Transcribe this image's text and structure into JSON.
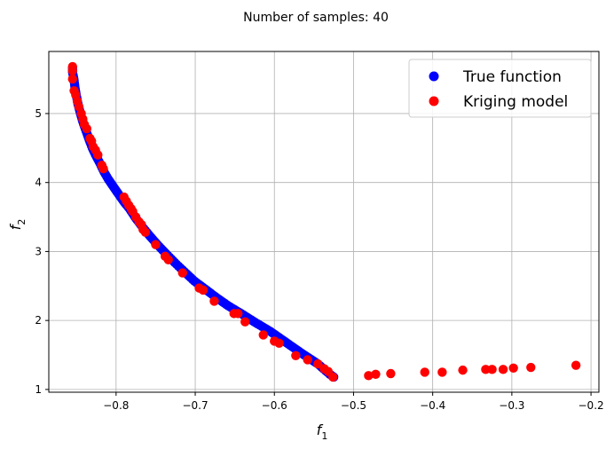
{
  "chart_data": {
    "type": "scatter",
    "title": "Number of samples: 40",
    "xlabel": "f",
    "xlabel_sub": "1",
    "ylabel": "f",
    "ylabel_sub": "2",
    "xlim": [
      -0.885,
      -0.19
    ],
    "ylim": [
      0.96,
      5.9
    ],
    "xticks": [
      -0.8,
      -0.7,
      -0.6,
      -0.5,
      -0.4,
      -0.3,
      -0.2
    ],
    "xtick_labels": [
      "−0.8",
      "−0.7",
      "−0.6",
      "−0.5",
      "−0.4",
      "−0.3",
      "−0.2"
    ],
    "yticks": [
      1,
      2,
      3,
      4,
      5
    ],
    "ytick_labels": [
      "1",
      "2",
      "3",
      "4",
      "5"
    ],
    "grid": true,
    "legend_position": "top-right",
    "series": [
      {
        "name": "True function",
        "color": "#0000ff",
        "curve": true,
        "x_range": [
          -0.855,
          -0.525
        ],
        "points": [
          [
            -0.855,
            5.66
          ],
          [
            -0.855,
            5.6
          ],
          [
            -0.853,
            5.48
          ],
          [
            -0.852,
            5.38
          ],
          [
            -0.85,
            5.25
          ],
          [
            -0.848,
            5.13
          ],
          [
            -0.845,
            5.0
          ],
          [
            -0.842,
            4.88
          ],
          [
            -0.838,
            4.75
          ],
          [
            -0.834,
            4.62
          ],
          [
            -0.83,
            4.5
          ],
          [
            -0.826,
            4.4
          ],
          [
            -0.82,
            4.27
          ],
          [
            -0.815,
            4.15
          ],
          [
            -0.81,
            4.05
          ],
          [
            -0.804,
            3.95
          ],
          [
            -0.798,
            3.85
          ],
          [
            -0.79,
            3.72
          ],
          [
            -0.783,
            3.62
          ],
          [
            -0.775,
            3.48
          ],
          [
            -0.767,
            3.36
          ],
          [
            -0.757,
            3.22
          ],
          [
            -0.747,
            3.09
          ],
          [
            -0.737,
            2.97
          ],
          [
            -0.726,
            2.84
          ],
          [
            -0.714,
            2.71
          ],
          [
            -0.701,
            2.57
          ],
          [
            -0.688,
            2.46
          ],
          [
            -0.673,
            2.33
          ],
          [
            -0.658,
            2.21
          ],
          [
            -0.642,
            2.1
          ],
          [
            -0.624,
            1.97
          ],
          [
            -0.605,
            1.84
          ],
          [
            -0.585,
            1.68
          ],
          [
            -0.565,
            1.52
          ],
          [
            -0.545,
            1.37
          ],
          [
            -0.53,
            1.22
          ],
          [
            -0.525,
            1.18
          ]
        ]
      },
      {
        "name": "Kriging model",
        "color": "#ff0000",
        "points": [
          [
            -0.855,
            5.68
          ],
          [
            -0.855,
            5.62
          ],
          [
            -0.855,
            5.5
          ],
          [
            -0.853,
            5.33
          ],
          [
            -0.851,
            5.27
          ],
          [
            -0.849,
            5.18
          ],
          [
            -0.847,
            5.1
          ],
          [
            -0.844,
            5.0
          ],
          [
            -0.842,
            4.92
          ],
          [
            -0.84,
            4.84
          ],
          [
            -0.837,
            4.78
          ],
          [
            -0.833,
            4.64
          ],
          [
            -0.831,
            4.6
          ],
          [
            -0.829,
            4.52
          ],
          [
            -0.826,
            4.47
          ],
          [
            -0.823,
            4.4
          ],
          [
            -0.818,
            4.25
          ],
          [
            -0.816,
            4.2
          ],
          [
            -0.79,
            3.79
          ],
          [
            -0.787,
            3.73
          ],
          [
            -0.784,
            3.67
          ],
          [
            -0.781,
            3.62
          ],
          [
            -0.779,
            3.58
          ],
          [
            -0.775,
            3.5
          ],
          [
            -0.771,
            3.43
          ],
          [
            -0.768,
            3.39
          ],
          [
            -0.766,
            3.32
          ],
          [
            -0.763,
            3.28
          ],
          [
            -0.75,
            3.1
          ],
          [
            -0.738,
            2.93
          ],
          [
            -0.734,
            2.88
          ],
          [
            -0.716,
            2.69
          ],
          [
            -0.695,
            2.47
          ],
          [
            -0.69,
            2.44
          ],
          [
            -0.676,
            2.28
          ],
          [
            -0.651,
            2.1
          ],
          [
            -0.646,
            2.1
          ],
          [
            -0.637,
            1.98
          ],
          [
            -0.614,
            1.79
          ],
          [
            -0.6,
            1.7
          ],
          [
            -0.594,
            1.67
          ],
          [
            -0.573,
            1.49
          ],
          [
            -0.558,
            1.43
          ],
          [
            -0.545,
            1.37
          ],
          [
            -0.537,
            1.3
          ],
          [
            -0.532,
            1.26
          ],
          [
            -0.526,
            1.18
          ],
          [
            -0.481,
            1.2
          ],
          [
            -0.472,
            1.22
          ],
          [
            -0.453,
            1.23
          ],
          [
            -0.41,
            1.25
          ],
          [
            -0.388,
            1.25
          ],
          [
            -0.362,
            1.28
          ],
          [
            -0.333,
            1.29
          ],
          [
            -0.325,
            1.29
          ],
          [
            -0.311,
            1.29
          ],
          [
            -0.298,
            1.31
          ],
          [
            -0.276,
            1.32
          ],
          [
            -0.219,
            1.35
          ]
        ]
      }
    ]
  }
}
